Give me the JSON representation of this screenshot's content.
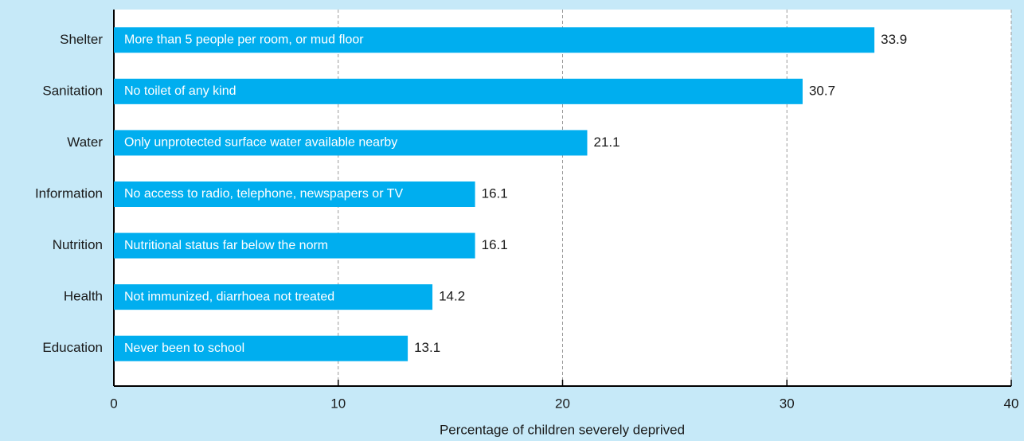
{
  "chart_data": {
    "type": "bar",
    "orientation": "horizontal",
    "categories": [
      "Shelter",
      "Sanitation",
      "Water",
      "Information",
      "Nutrition",
      "Health",
      "Education"
    ],
    "values": [
      33.9,
      30.7,
      21.1,
      16.1,
      16.1,
      14.2,
      13.1
    ],
    "annotations": [
      "More than 5 people per room, or mud floor",
      "No toilet of any kind",
      "Only unprotected surface water available nearby",
      "No access to radio, telephone, newspapers or TV",
      "Nutritional status far below the norm",
      "Not immunized, diarrhoea not treated",
      "Never been to school"
    ],
    "color": "#00aeef",
    "xlabel": "Percentage of children severely deprived",
    "xlim": [
      0,
      40
    ],
    "xticks": [
      0,
      10,
      20,
      30,
      40
    ],
    "grid": true
  }
}
